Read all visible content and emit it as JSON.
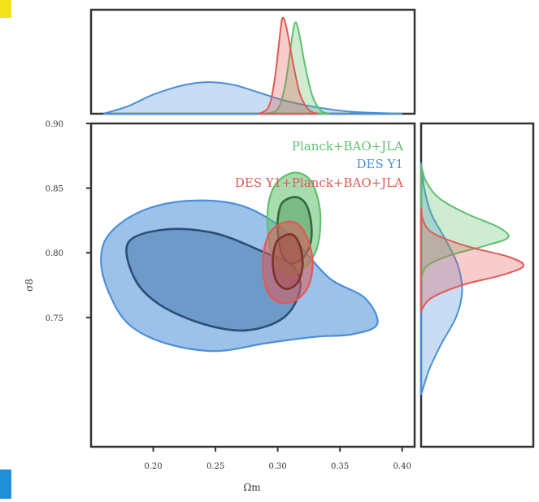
{
  "colors": {
    "green": "#5fbf6e",
    "blue": "#4a8fd9",
    "red": "#e05a56",
    "frame": "#333333"
  },
  "chart_data": {
    "type": "scatter",
    "subtype": "corner-plot (2D credible contours with 1D marginal posteriors)",
    "xlabel": "Ωm",
    "ylabel": "σ8",
    "xlim": [
      0.15,
      0.41
    ],
    "ylim": [
      0.65,
      0.9
    ],
    "x_ticks": [
      "0.20",
      "0.25",
      "0.30",
      "0.35",
      "0.40"
    ],
    "y_ticks": [
      "0.90",
      "0.85",
      "0.80",
      "0.75"
    ],
    "legend": {
      "placement": "top-right",
      "entries": [
        {
          "label": "Planck+BAO+JLA",
          "color": "#5fbf6e"
        },
        {
          "label": "DES Y1",
          "color": "#4a8fd9"
        },
        {
          "label": "DES Y1+Planck+BAO+JLA",
          "color": "#e05a56"
        }
      ]
    },
    "series": [
      {
        "name": "Planck+BAO+JLA",
        "color": "#5fbf6e",
        "contour_68": [
          [
            0.305,
            0.84
          ],
          [
            0.315,
            0.843
          ],
          [
            0.323,
            0.837
          ],
          [
            0.327,
            0.822
          ],
          [
            0.326,
            0.806
          ],
          [
            0.319,
            0.795
          ],
          [
            0.31,
            0.792
          ],
          [
            0.303,
            0.8
          ],
          [
            0.3,
            0.818
          ],
          [
            0.301,
            0.832
          ]
        ],
        "contour_95": [
          [
            0.3,
            0.855
          ],
          [
            0.314,
            0.862
          ],
          [
            0.327,
            0.855
          ],
          [
            0.334,
            0.832
          ],
          [
            0.332,
            0.805
          ],
          [
            0.322,
            0.789
          ],
          [
            0.308,
            0.784
          ],
          [
            0.297,
            0.794
          ],
          [
            0.292,
            0.818
          ],
          [
            0.293,
            0.84
          ]
        ],
        "marginal_x": [
          [
            0.29,
            0.0
          ],
          [
            0.3,
            0.05
          ],
          [
            0.306,
            0.3
          ],
          [
            0.311,
            0.75
          ],
          [
            0.314,
            0.95
          ],
          [
            0.317,
            0.85
          ],
          [
            0.322,
            0.5
          ],
          [
            0.328,
            0.18
          ],
          [
            0.335,
            0.03
          ],
          [
            0.342,
            0.0
          ]
        ],
        "marginal_y": [
          [
            0.78,
            0.0
          ],
          [
            0.79,
            0.06
          ],
          [
            0.798,
            0.28
          ],
          [
            0.806,
            0.65
          ],
          [
            0.812,
            0.85
          ],
          [
            0.82,
            0.75
          ],
          [
            0.83,
            0.45
          ],
          [
            0.842,
            0.18
          ],
          [
            0.855,
            0.05
          ],
          [
            0.868,
            0.0
          ]
        ]
      },
      {
        "name": "DES Y1",
        "color": "#4a8fd9",
        "contour_68": [
          [
            0.18,
            0.808
          ],
          [
            0.21,
            0.818
          ],
          [
            0.25,
            0.815
          ],
          [
            0.29,
            0.8
          ],
          [
            0.312,
            0.79
          ],
          [
            0.318,
            0.772
          ],
          [
            0.305,
            0.75
          ],
          [
            0.275,
            0.74
          ],
          [
            0.24,
            0.745
          ],
          [
            0.205,
            0.76
          ],
          [
            0.185,
            0.78
          ]
        ],
        "contour_95": [
          [
            0.165,
            0.815
          ],
          [
            0.19,
            0.832
          ],
          [
            0.225,
            0.84
          ],
          [
            0.265,
            0.838
          ],
          [
            0.295,
            0.825
          ],
          [
            0.318,
            0.805
          ],
          [
            0.342,
            0.78
          ],
          [
            0.37,
            0.765
          ],
          [
            0.38,
            0.745
          ],
          [
            0.36,
            0.737
          ],
          [
            0.33,
            0.735
          ],
          [
            0.29,
            0.73
          ],
          [
            0.25,
            0.724
          ],
          [
            0.21,
            0.73
          ],
          [
            0.18,
            0.745
          ],
          [
            0.164,
            0.77
          ],
          [
            0.158,
            0.795
          ]
        ],
        "marginal_x": [
          [
            0.16,
            0.0
          ],
          [
            0.18,
            0.08
          ],
          [
            0.2,
            0.2
          ],
          [
            0.225,
            0.3
          ],
          [
            0.245,
            0.33
          ],
          [
            0.265,
            0.3
          ],
          [
            0.285,
            0.22
          ],
          [
            0.305,
            0.14
          ],
          [
            0.33,
            0.07
          ],
          [
            0.36,
            0.02
          ],
          [
            0.4,
            0.0
          ]
        ],
        "marginal_y": [
          [
            0.69,
            0.0
          ],
          [
            0.71,
            0.08
          ],
          [
            0.73,
            0.2
          ],
          [
            0.75,
            0.34
          ],
          [
            0.77,
            0.4
          ],
          [
            0.79,
            0.36
          ],
          [
            0.81,
            0.24
          ],
          [
            0.83,
            0.1
          ],
          [
            0.85,
            0.03
          ],
          [
            0.87,
            0.0
          ]
        ]
      },
      {
        "name": "DES Y1+Planck+BAO+JLA",
        "color": "#e05a56",
        "contour_68": [
          [
            0.303,
            0.812
          ],
          [
            0.312,
            0.814
          ],
          [
            0.318,
            0.805
          ],
          [
            0.32,
            0.79
          ],
          [
            0.316,
            0.777
          ],
          [
            0.307,
            0.772
          ],
          [
            0.299,
            0.778
          ],
          [
            0.296,
            0.792
          ],
          [
            0.298,
            0.806
          ]
        ],
        "contour_95": [
          [
            0.298,
            0.82
          ],
          [
            0.312,
            0.824
          ],
          [
            0.322,
            0.815
          ],
          [
            0.328,
            0.795
          ],
          [
            0.325,
            0.775
          ],
          [
            0.314,
            0.763
          ],
          [
            0.3,
            0.762
          ],
          [
            0.291,
            0.772
          ],
          [
            0.288,
            0.792
          ],
          [
            0.291,
            0.81
          ]
        ],
        "marginal_x": [
          [
            0.285,
            0.0
          ],
          [
            0.293,
            0.08
          ],
          [
            0.298,
            0.4
          ],
          [
            0.302,
            0.85
          ],
          [
            0.304,
            1.0
          ],
          [
            0.307,
            0.9
          ],
          [
            0.312,
            0.55
          ],
          [
            0.318,
            0.2
          ],
          [
            0.325,
            0.04
          ],
          [
            0.332,
            0.0
          ]
        ],
        "marginal_y": [
          [
            0.755,
            0.0
          ],
          [
            0.765,
            0.1
          ],
          [
            0.775,
            0.4
          ],
          [
            0.783,
            0.8
          ],
          [
            0.79,
            1.0
          ],
          [
            0.797,
            0.85
          ],
          [
            0.805,
            0.45
          ],
          [
            0.815,
            0.12
          ],
          [
            0.825,
            0.02
          ],
          [
            0.835,
            0.0
          ]
        ]
      }
    ]
  }
}
